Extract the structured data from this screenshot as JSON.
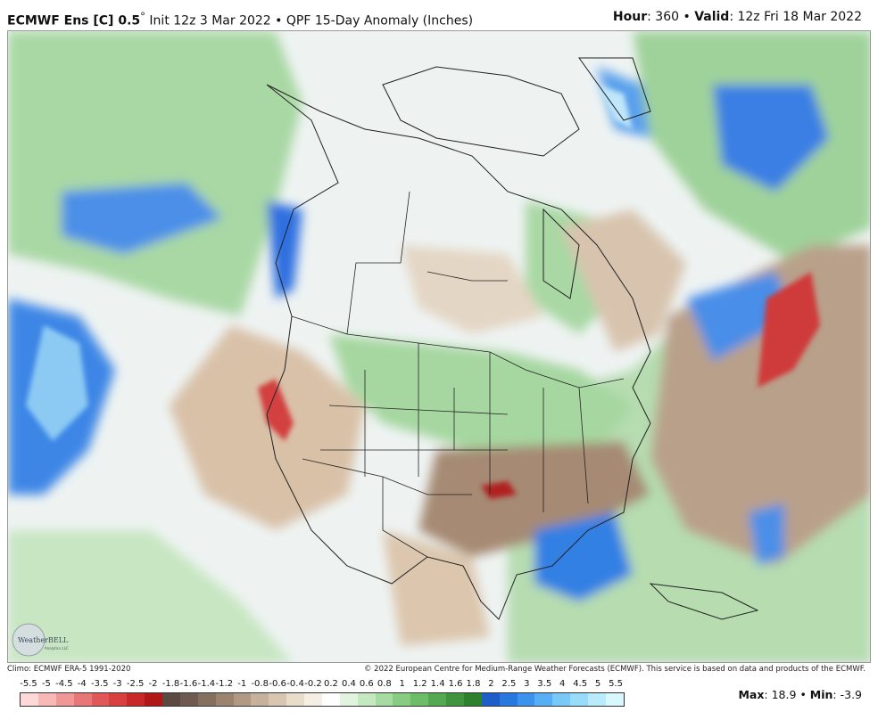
{
  "header": {
    "model": "ECMWF Ens [C] 0.5",
    "degree": "°",
    "init_text": "Init 12z 3 Mar 2022",
    "sep": "•",
    "product": "QPF 15-Day Anomaly (Inches)",
    "hour_label": "Hour",
    "hour_value": ": 360",
    "valid_label": "Valid",
    "valid_value": ": 12z Fri 18 Mar 2022"
  },
  "footer": {
    "climo": "Climo: ECMWF ERA-5 1991-2020",
    "copyright": "© 2022 European Centre for Medium-Range Weather Forecasts (ECMWF). This service is based on data and products of the ECMWF.",
    "max_label": "Max",
    "max_value": ": 18.9",
    "min_label": "Min",
    "min_value": ": -3.9",
    "sep": "•"
  },
  "logo": {
    "name": "WeatherBELL",
    "sub": "Analytics LLC"
  },
  "colorbar": {
    "labels": [
      "-5.5",
      "-5",
      "-4.5",
      "-4",
      "-3.5",
      "-3",
      "-2.5",
      "-2",
      "-1.8",
      "-1.6",
      "-1.4",
      "-1.2",
      "-1",
      "-0.8",
      "-0.6",
      "-0.4",
      "-0.2",
      "0.2",
      "0.4",
      "0.6",
      "0.8",
      "1",
      "1.2",
      "1.4",
      "1.6",
      "1.8",
      "2",
      "2.5",
      "3",
      "3.5",
      "4",
      "4.5",
      "5",
      "5.5"
    ],
    "colors": [
      "#ffd8d8",
      "#f8b8b8",
      "#f09898",
      "#e87878",
      "#e05858",
      "#d84040",
      "#c82828",
      "#b01818",
      "#5a4a42",
      "#6e5a50",
      "#84705f",
      "#9a8470",
      "#b09a84",
      "#c6b29c",
      "#d8c6b0",
      "#e8dccb",
      "#f4eee4",
      "#ffffff",
      "#e2f4e0",
      "#c4e8c0",
      "#a6dca2",
      "#88cc84",
      "#6cbc68",
      "#54a852",
      "#40943e",
      "#2e802e",
      "#1e5ec8",
      "#2878e0",
      "#3c92ec",
      "#58aef4",
      "#78c8f8",
      "#98dcfa",
      "#b8ecfc",
      "#d8f8fe"
    ]
  }
}
